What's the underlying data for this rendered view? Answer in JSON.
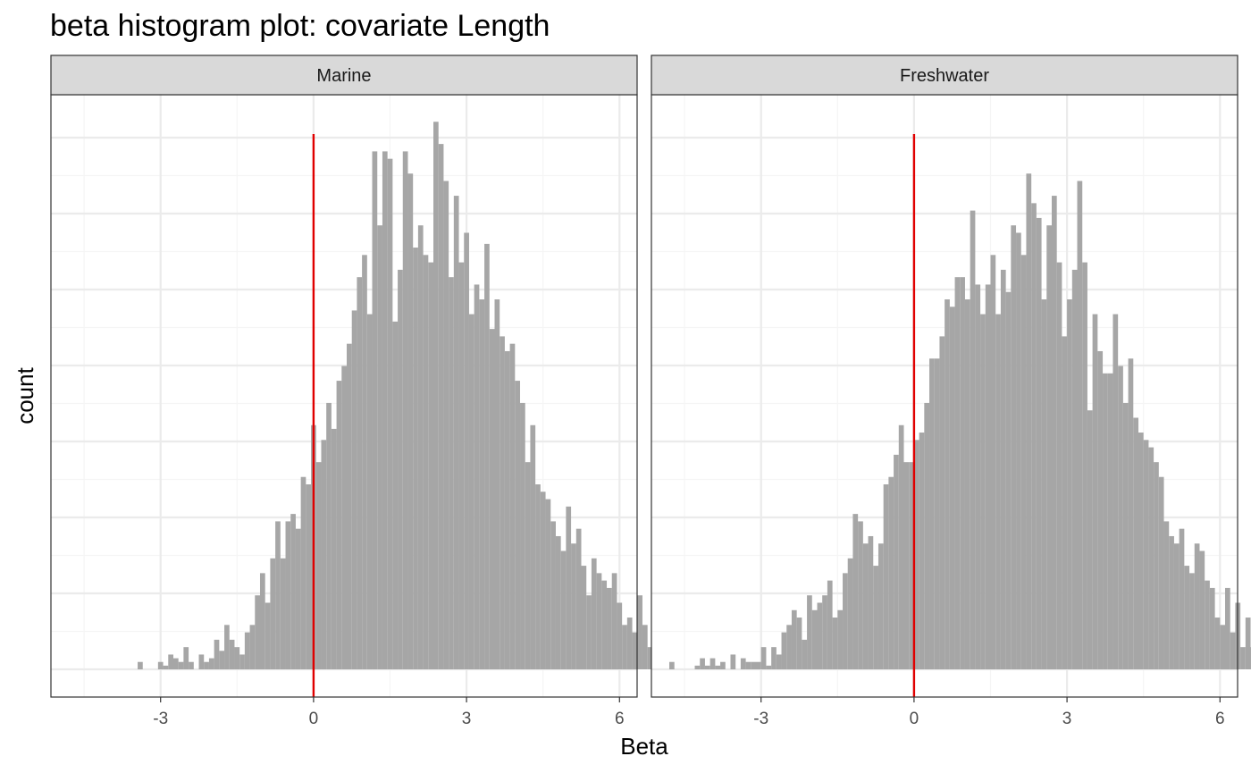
{
  "chart_data": {
    "type": "bar",
    "title": "beta histogram plot: covariate Length",
    "xlabel": "Beta",
    "ylabel": "count",
    "xlim": [
      -4.8,
      6.1
    ],
    "x_ticks": [
      "-3",
      "0",
      "3",
      "6"
    ],
    "x_tick_values": [
      -3,
      0,
      3,
      6
    ],
    "y_tick_labels_shown": false,
    "grid": true,
    "vline": {
      "x": 0,
      "color": "#e00000"
    },
    "colors": {
      "bar": "#a6a6a6",
      "strip_bg": "#d9d9d9",
      "grid_major": "#ebebeb",
      "grid_minor": "#f5f5f5",
      "panel_border": "#333333"
    },
    "bin_width": 0.1,
    "panels": [
      {
        "name": "Marine",
        "bins_start": -3.45,
        "counts": [
          2,
          0,
          0,
          0,
          2,
          1,
          4,
          3,
          2,
          6,
          2,
          0,
          4,
          2,
          3,
          8,
          5,
          12,
          8,
          6,
          4,
          10,
          12,
          20,
          26,
          18,
          30,
          40,
          30,
          40,
          42,
          38,
          52,
          50,
          66,
          56,
          62,
          72,
          65,
          78,
          82,
          88,
          97,
          106,
          112,
          96,
          140,
          120,
          140,
          138,
          94,
          108,
          140,
          134,
          114,
          120,
          112,
          110,
          148,
          142,
          132,
          106,
          128,
          110,
          118,
          96,
          104,
          100,
          115,
          92,
          100,
          90,
          86,
          88,
          78,
          72,
          56,
          66,
          50,
          48,
          46,
          40,
          36,
          32,
          44,
          34,
          38,
          28,
          20,
          30,
          26,
          24,
          22,
          26,
          18,
          12,
          14,
          10,
          20,
          12,
          6,
          16,
          10,
          4,
          14,
          8,
          10,
          6,
          4,
          8,
          4,
          2,
          1,
          0,
          3,
          0,
          2,
          0,
          0,
          0,
          0,
          0,
          0,
          0,
          0,
          0,
          0,
          0,
          0,
          0,
          0,
          0,
          0,
          0,
          0,
          0,
          0,
          0,
          0,
          0,
          0,
          0,
          0,
          0,
          0
        ]
      },
      {
        "name": "Freshwater",
        "bins_start": -4.8,
        "counts": [
          2,
          0,
          0,
          0,
          0,
          0,
          0,
          0,
          0,
          0,
          0,
          0,
          0,
          0,
          0,
          0,
          0,
          0,
          0,
          0,
          0,
          0,
          0,
          0,
          0,
          0,
          0,
          0,
          0,
          0,
          0,
          0,
          0,
          0,
          0,
          0,
          0,
          0,
          0,
          0,
          0,
          0,
          0,
          0,
          0,
          0,
          0,
          0,
          0,
          0,
          0,
          0,
          0,
          0,
          0,
          0,
          0,
          0,
          0,
          0,
          0,
          0,
          0,
          0,
          0,
          0,
          0,
          0,
          0,
          0,
          0,
          0,
          0,
          0,
          0,
          0,
          0,
          0,
          0,
          0,
          0,
          0,
          0,
          0,
          0,
          0,
          0,
          0,
          0,
          0,
          0,
          0,
          0,
          0,
          0,
          0,
          0,
          0,
          0,
          0,
          0,
          0,
          0,
          0,
          0,
          0,
          0,
          0,
          0,
          0,
          0,
          0,
          0,
          0,
          0,
          0,
          0,
          0,
          0,
          0,
          0,
          0,
          0,
          0,
          0,
          0,
          0,
          0,
          0,
          0,
          0,
          0,
          0,
          0,
          0,
          0,
          0,
          0,
          0,
          0,
          0,
          0,
          0,
          0,
          0
        ]
      }
    ]
  }
}
